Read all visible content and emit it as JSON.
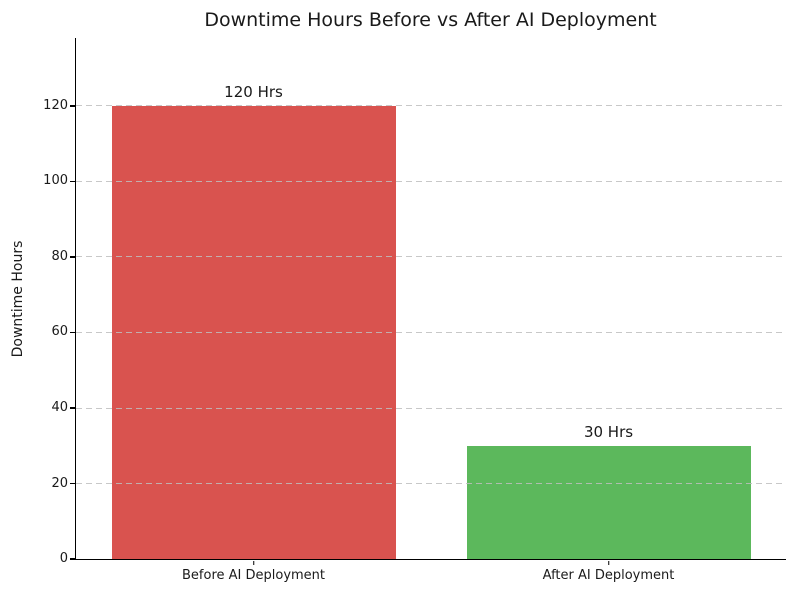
{
  "chart_data": {
    "type": "bar",
    "title": "Downtime Hours Before vs After AI Deployment",
    "xlabel": "",
    "ylabel": "Downtime Hours",
    "categories": [
      "Before AI Deployment",
      "After AI Deployment"
    ],
    "values": [
      120,
      30
    ],
    "value_labels": [
      "120 Hrs",
      "30 Hrs"
    ],
    "bar_colors": [
      "#d9534f",
      "#5cb85c"
    ],
    "yticks": [
      0,
      20,
      40,
      60,
      80,
      100,
      120
    ],
    "ylim": [
      0,
      138
    ],
    "bar_width_fraction": 0.8,
    "grid": "horizontal-dashed",
    "grid_color": "#bebebe",
    "legend": "none",
    "title_color": "#1a1a1a",
    "spine_color": "#000000"
  }
}
